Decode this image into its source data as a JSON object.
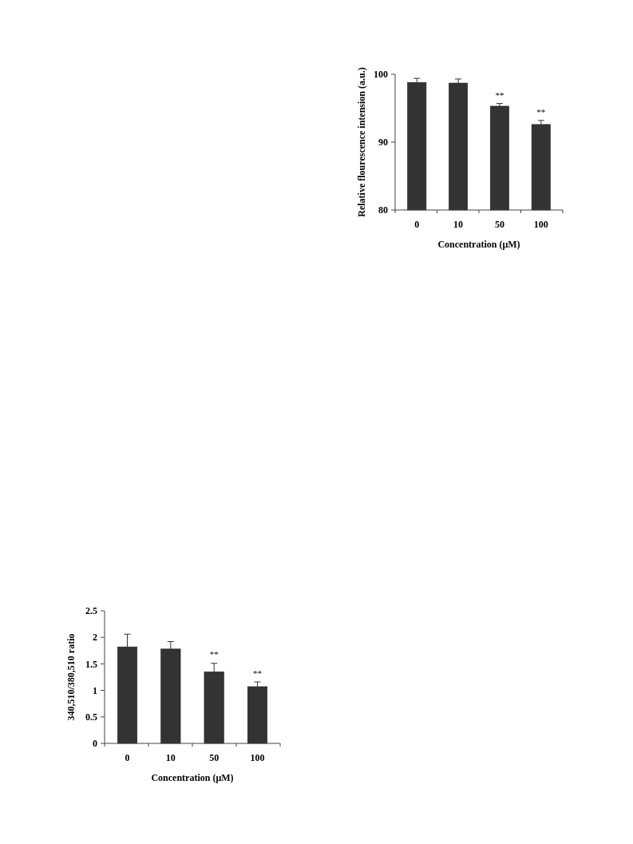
{
  "chart_data": [
    {
      "type": "bar",
      "categories": [
        "0",
        "10",
        "50",
        "100"
      ],
      "values": [
        98.8,
        98.7,
        95.3,
        92.6
      ],
      "errors": [
        0.6,
        0.6,
        0.4,
        0.6
      ],
      "color": "#333333",
      "xlabel": "Concentration (μM)",
      "ylabel": "Relative flourescence intension (a.u.)",
      "ylim": [
        80,
        100
      ],
      "yticks": [
        80,
        90,
        100
      ],
      "annotations": [
        {
          "text": "**",
          "x": "50",
          "y": 95.7
        },
        {
          "text": "**",
          "x": "100",
          "y": 93.2
        }
      ]
    },
    {
      "type": "bar",
      "categories": [
        "0",
        "10",
        "50",
        "100"
      ],
      "values": [
        1.82,
        1.78,
        1.35,
        1.07
      ],
      "errors": [
        0.24,
        0.14,
        0.16,
        0.09
      ],
      "color": "#333333",
      "xlabel": "Concentration (μM)",
      "ylabel": "340,510/380,510 ratio",
      "ylim": [
        0,
        2.5
      ],
      "yticks": [
        0,
        0.5,
        1,
        1.5,
        2,
        2.5
      ],
      "annotations": [
        {
          "text": "**",
          "x": "50",
          "y": 1.52
        },
        {
          "text": "**",
          "x": "100",
          "y": 1.16
        }
      ]
    }
  ]
}
